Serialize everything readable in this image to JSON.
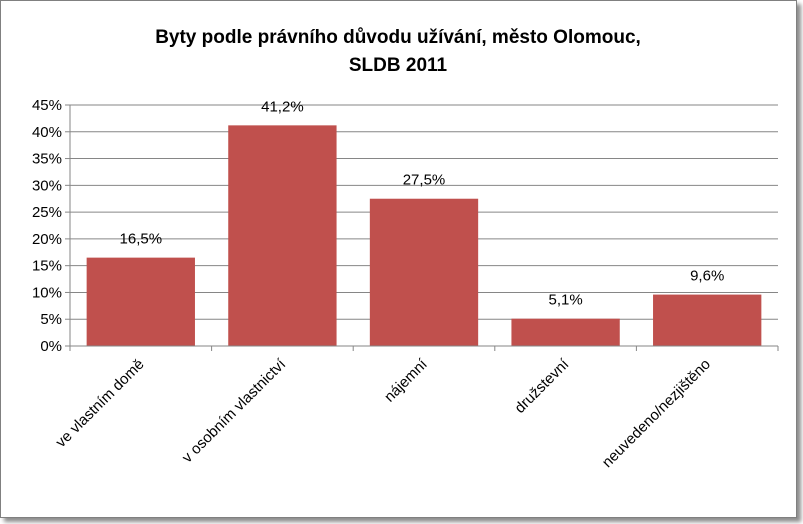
{
  "chart_data": {
    "type": "bar",
    "title_lines": [
      "Byty podle  právního důvodu  užívání, město Olomouc,",
      "SLDB 2011"
    ],
    "categories": [
      "ve vlastním domě",
      "v osobním vlastnictví",
      "nájemní",
      "družstevní",
      "neuvedeno/nezjištěno"
    ],
    "values": [
      16.5,
      41.2,
      27.5,
      5.1,
      9.6
    ],
    "data_labels": [
      "16,5%",
      "41,2%",
      "27,5%",
      "5,1%",
      "9,6%"
    ],
    "y_ticks": [
      0,
      5,
      10,
      15,
      20,
      25,
      30,
      35,
      40,
      45
    ],
    "y_tick_labels": [
      "0%",
      "5%",
      "10%",
      "15%",
      "20%",
      "25%",
      "30%",
      "35%",
      "40%",
      "45%"
    ],
    "ylim": [
      0,
      45
    ],
    "grid": true,
    "legend": "none",
    "bar_color": "#C0504D",
    "grid_color": "#868686"
  }
}
